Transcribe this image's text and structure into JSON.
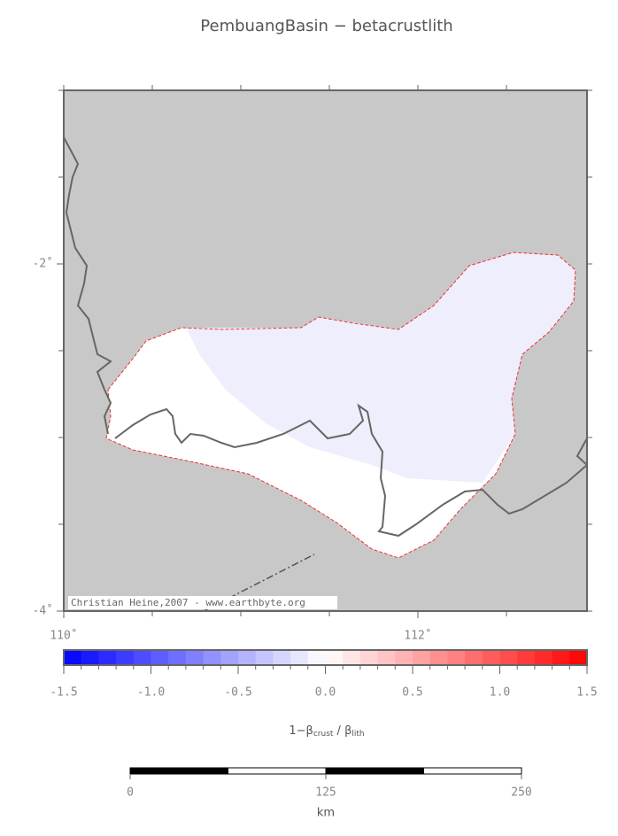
{
  "title": "PembuangBasin − betacrustlith",
  "map": {
    "xlim": [
      110,
      112.955
    ],
    "ylim": [
      -4,
      -1
    ],
    "xticks": [
      {
        "value": 110,
        "label": "110˚"
      },
      {
        "value": 112,
        "label": "112˚"
      }
    ],
    "yticks": [
      {
        "value": -2,
        "label": "-2˚"
      },
      {
        "value": -4,
        "label": "-4˚"
      }
    ],
    "minor_step": 0.5,
    "background": "#c8c8c8",
    "credit": "Christian Heine,2007 - www.earthbyte.org"
  },
  "colorbar": {
    "lim": [
      -1.5,
      1.5
    ],
    "step": 0.1,
    "colors": [
      "#0000ff",
      "#ffffff",
      "#ff0000"
    ],
    "ticks": [
      -1.5,
      {
        "value": -1,
        "label": "-1.0"
      },
      -0.5,
      {
        "value": 0,
        "label": "0.0"
      },
      0.5,
      {
        "value": 1,
        "label": "1.0"
      },
      1.5
    ],
    "label": {
      "main": "1−β",
      "sub1": "crust",
      "mid": " / β",
      "sub2": "lith"
    }
  },
  "scalebar": {
    "lim": [
      0,
      250
    ],
    "ticks": [
      0,
      125,
      250
    ],
    "divisions": 4,
    "label": "km"
  }
}
